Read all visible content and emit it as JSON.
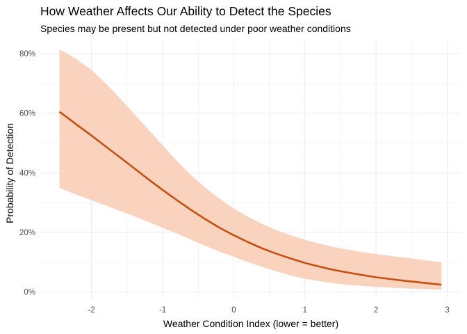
{
  "chart_data": {
    "type": "line",
    "title": "How Weather Affects Our Ability to Detect the Species",
    "subtitle": "Species may be present but not detected under poor weather conditions",
    "xlabel": "Weather Condition Index (lower = better)",
    "ylabel": "Probability of Detection",
    "xlim": [
      -2.72,
      3.2
    ],
    "ylim": [
      -0.02,
      0.84
    ],
    "xticks": [
      -2,
      -1,
      0,
      1,
      2,
      3
    ],
    "xtick_labels": [
      "-2",
      "-1",
      "0",
      "1",
      "2",
      "3"
    ],
    "yticks": [
      0,
      0.2,
      0.4,
      0.6,
      0.8
    ],
    "ytick_labels": [
      "0%",
      "20%",
      "40%",
      "60%",
      "80%"
    ],
    "grid": true,
    "series": [
      {
        "x": [
          -2.45,
          -2.2,
          -2.0,
          -1.8,
          -1.6,
          -1.4,
          -1.2,
          -1.0,
          -0.8,
          -0.6,
          -0.4,
          -0.2,
          0.0,
          0.2,
          0.4,
          0.6,
          0.8,
          1.0,
          1.2,
          1.4,
          1.6,
          1.8,
          2.0,
          2.2,
          2.4,
          2.6,
          2.8,
          2.92
        ],
        "values": [
          0.605,
          0.56,
          0.525,
          0.488,
          0.452,
          0.415,
          0.378,
          0.342,
          0.308,
          0.275,
          0.244,
          0.215,
          0.19,
          0.167,
          0.146,
          0.128,
          0.112,
          0.097,
          0.085,
          0.074,
          0.065,
          0.057,
          0.049,
          0.043,
          0.037,
          0.032,
          0.027,
          0.024
        ],
        "lower": [
          0.35,
          0.325,
          0.308,
          0.29,
          0.272,
          0.254,
          0.235,
          0.215,
          0.196,
          0.175,
          0.155,
          0.135,
          0.118,
          0.1,
          0.084,
          0.069,
          0.055,
          0.044,
          0.036,
          0.029,
          0.024,
          0.02,
          0.017,
          0.014,
          0.012,
          0.01,
          0.008,
          0.007
        ],
        "upper": [
          0.815,
          0.78,
          0.745,
          0.7,
          0.65,
          0.598,
          0.545,
          0.492,
          0.44,
          0.392,
          0.35,
          0.312,
          0.28,
          0.252,
          0.228,
          0.207,
          0.19,
          0.175,
          0.162,
          0.151,
          0.142,
          0.134,
          0.127,
          0.121,
          0.115,
          0.109,
          0.103,
          0.099
        ]
      }
    ],
    "colors": {
      "line": "#c8500e",
      "band": "#f9d3bd",
      "grid": "#ebebeb"
    }
  }
}
